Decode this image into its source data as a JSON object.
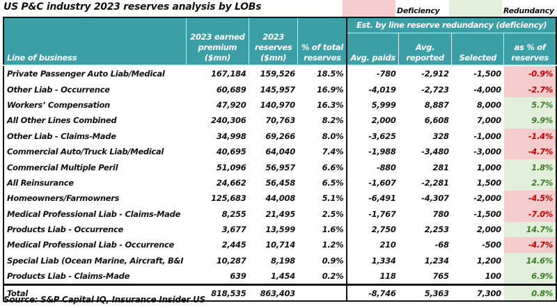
{
  "title": "US P&C industry 2023 reserves analysis by LOBs",
  "legend": {
    "deficiency": {
      "label": "Deficiency",
      "color": "#F4CCCC"
    },
    "redundancy": {
      "label": "Redundancy",
      "color": "#E2EFDA"
    }
  },
  "header": {
    "line_of_business": "Line of business",
    "earned_premium": "2023 earned premium ($mn)",
    "reserves": "2023 reserves ($mn)",
    "pct_total": "% of total reserves",
    "group": "Est. by line reserve redundancy (deficiency)",
    "avg_paids": "Avg. paids",
    "avg_reported": "Avg. reported",
    "selected": "Selected",
    "pct_reserves": "as % of reserves"
  },
  "rows": [
    {
      "lob": "Private Passenger Auto Liab/Medical",
      "premium": "167,184",
      "reserves": "159,526",
      "pct_total": "18.5%",
      "avg_paids": "-780",
      "avg_reported": "-2,912",
      "selected": "-1,500",
      "pct_reserves": "-0.9%",
      "status": "deficiency"
    },
    {
      "lob": "Other Liab - Occurrence",
      "premium": "60,689",
      "reserves": "145,957",
      "pct_total": "16.9%",
      "avg_paids": "-4,019",
      "avg_reported": "-2,723",
      "selected": "-4,000",
      "pct_reserves": "-2.7%",
      "status": "deficiency"
    },
    {
      "lob": "Workers’ Compensation",
      "premium": "47,920",
      "reserves": "140,970",
      "pct_total": "16.3%",
      "avg_paids": "5,999",
      "avg_reported": "8,887",
      "selected": "8,000",
      "pct_reserves": "5.7%",
      "status": "redundancy"
    },
    {
      "lob": "All Other Lines Combined",
      "premium": "240,306",
      "reserves": "70,763",
      "pct_total": "8.2%",
      "avg_paids": "2,000",
      "avg_reported": "6,608",
      "selected": "7,000",
      "pct_reserves": "9.9%",
      "status": "redundancy"
    },
    {
      "lob": "Other Liab - Claims-Made",
      "premium": "34,998",
      "reserves": "69,266",
      "pct_total": "8.0%",
      "avg_paids": "-3,625",
      "avg_reported": "328",
      "selected": "-1,000",
      "pct_reserves": "-1.4%",
      "status": "deficiency"
    },
    {
      "lob": "Commercial Auto/Truck Liab/Medical",
      "premium": "40,695",
      "reserves": "64,040",
      "pct_total": "7.4%",
      "avg_paids": "-1,988",
      "avg_reported": "-3,480",
      "selected": "-3,000",
      "pct_reserves": "-4.7%",
      "status": "deficiency"
    },
    {
      "lob": "Commercial Multiple Peril",
      "premium": "51,096",
      "reserves": "56,957",
      "pct_total": "6.6%",
      "avg_paids": "-880",
      "avg_reported": "281",
      "selected": "1,000",
      "pct_reserves": "1.8%",
      "status": "redundancy"
    },
    {
      "lob": "All Reinsurance",
      "premium": "24,662",
      "reserves": "56,458",
      "pct_total": "6.5%",
      "avg_paids": "-1,607",
      "avg_reported": "-2,281",
      "selected": "1,500",
      "pct_reserves": "2.7%",
      "status": "redundancy"
    },
    {
      "lob": "Homeowners/Farmowners",
      "premium": "125,683",
      "reserves": "44,008",
      "pct_total": "5.1%",
      "avg_paids": "-6,491",
      "avg_reported": "-4,307",
      "selected": "-2,000",
      "pct_reserves": "-4.5%",
      "status": "deficiency"
    },
    {
      "lob": "Medical Professional Liab - Claims-Made",
      "premium": "8,255",
      "reserves": "21,495",
      "pct_total": "2.5%",
      "avg_paids": "-1,767",
      "avg_reported": "780",
      "selected": "-1,500",
      "pct_reserves": "-7.0%",
      "status": "deficiency"
    },
    {
      "lob": "Products Liab - Occurrence",
      "premium": "3,677",
      "reserves": "13,599",
      "pct_total": "1.6%",
      "avg_paids": "2,750",
      "avg_reported": "2,253",
      "selected": "2,000",
      "pct_reserves": "14.7%",
      "status": "redundancy"
    },
    {
      "lob": "Medical Professional Liab - Occurrence",
      "premium": "2,445",
      "reserves": "10,714",
      "pct_total": "1.2%",
      "avg_paids": "210",
      "avg_reported": "-68",
      "selected": "-500",
      "pct_reserves": "-4.7%",
      "status": "deficiency"
    },
    {
      "lob": "Special Liab (Ocean Marine, Aircraft, B&I",
      "premium": "10,287",
      "reserves": "8,198",
      "pct_total": "0.9%",
      "avg_paids": "1,334",
      "avg_reported": "1,234",
      "selected": "1,200",
      "pct_reserves": "14.6%",
      "status": "redundancy"
    },
    {
      "lob": "Products Liab - Claims-Made",
      "premium": "639",
      "reserves": "1,454",
      "pct_total": "0.2%",
      "avg_paids": "118",
      "avg_reported": "765",
      "selected": "100",
      "pct_reserves": "6.9%",
      "status": "redundancy"
    }
  ],
  "total": {
    "lob": "Total",
    "premium": "818,535",
    "reserves": "863,403",
    "pct_total": "",
    "avg_paids": "-8,746",
    "avg_reported": "5,363",
    "selected": "7,300",
    "pct_reserves": "0.8%",
    "status": "redundancy"
  },
  "source": "Source: S&P Capital IQ, Insurance Insider US"
}
